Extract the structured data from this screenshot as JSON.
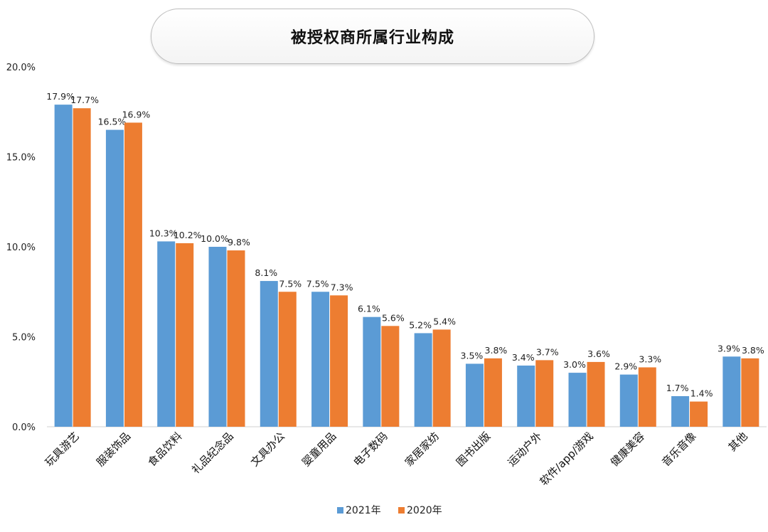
{
  "chart_data": {
    "type": "bar",
    "title": "被授权商所属行业构成",
    "categories": [
      "玩具游艺",
      "服装饰品",
      "食品饮料",
      "礼品纪念品",
      "文具办公",
      "婴童用品",
      "电子数码",
      "家居家纺",
      "图书出版",
      "运动户外",
      "软件/app/游戏",
      "健康美容",
      "音乐音像",
      "其他"
    ],
    "series": [
      {
        "name": "2021年",
        "color": "#5b9bd5",
        "values": [
          17.9,
          16.5,
          10.3,
          10.0,
          8.1,
          7.5,
          6.1,
          5.2,
          3.5,
          3.4,
          3.0,
          2.9,
          1.7,
          3.9
        ]
      },
      {
        "name": "2020年",
        "color": "#ed7d31",
        "values": [
          17.7,
          16.9,
          10.2,
          9.8,
          7.5,
          7.3,
          5.6,
          5.4,
          3.8,
          3.7,
          3.6,
          3.3,
          1.4,
          3.8
        ]
      }
    ],
    "yticks": [
      "0.0%",
      "5.0%",
      "10.0%",
      "15.0%",
      "20.0%"
    ],
    "ylim": [
      0,
      20
    ],
    "value_format": "percent_1dp",
    "legend_position": "bottom",
    "grid": false
  }
}
